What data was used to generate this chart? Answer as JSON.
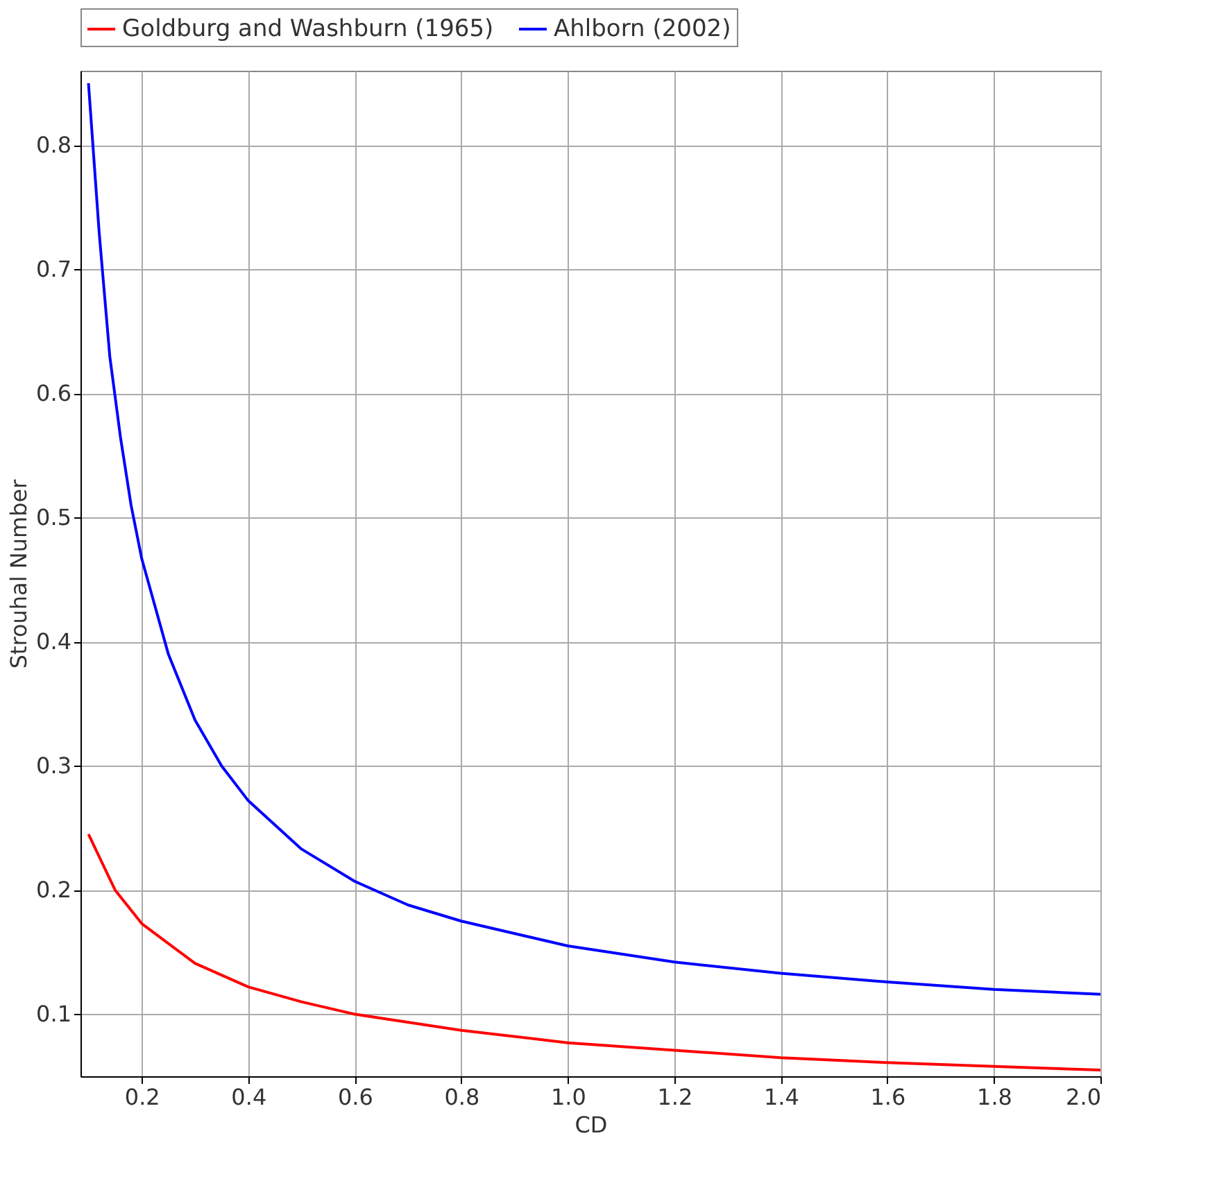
{
  "chart_data": {
    "type": "line",
    "xlabel": "CD",
    "ylabel": "Strouhal Number",
    "xlim": [
      0.085,
      2.0
    ],
    "ylim": [
      0.05,
      0.86
    ],
    "xticks": [
      0.2,
      0.4,
      0.6,
      0.8,
      {
        "value": 1.0,
        "label": "1.0"
      },
      1.2,
      1.4,
      1.6,
      1.8,
      {
        "value": 2.0,
        "label": "2.0"
      }
    ],
    "yticks": [
      0.1,
      0.2,
      0.3,
      0.4,
      0.5,
      0.6,
      0.7,
      0.8
    ],
    "grid": true,
    "legend": "top",
    "line_style": "solid",
    "marker": "none",
    "series": [
      {
        "name": "Goldburg and Washburn (1965)",
        "color": "#ff0000",
        "x": [
          0.1,
          0.15,
          0.2,
          0.3,
          0.4,
          0.5,
          0.6,
          0.8,
          1.0,
          1.2,
          1.4,
          1.6,
          1.8,
          2.0
        ],
        "values": [
          0.245,
          0.2,
          0.173,
          0.141,
          0.122,
          0.11,
          0.1,
          0.087,
          0.077,
          0.071,
          0.065,
          0.061,
          0.058,
          0.055
        ]
      },
      {
        "name": "Ahlborn (2002)",
        "color": "#0000ff",
        "x": [
          0.1,
          0.12,
          0.14,
          0.16,
          0.18,
          0.2,
          0.25,
          0.3,
          0.35,
          0.4,
          0.5,
          0.6,
          0.7,
          0.8,
          1.0,
          1.2,
          1.4,
          1.6,
          1.8,
          2.0
        ],
        "values": [
          0.85,
          0.73,
          0.63,
          0.565,
          0.51,
          0.467,
          0.39,
          0.337,
          0.3,
          0.272,
          0.233,
          0.207,
          0.188,
          0.175,
          0.155,
          0.142,
          0.133,
          0.126,
          0.12,
          0.116
        ]
      }
    ]
  }
}
